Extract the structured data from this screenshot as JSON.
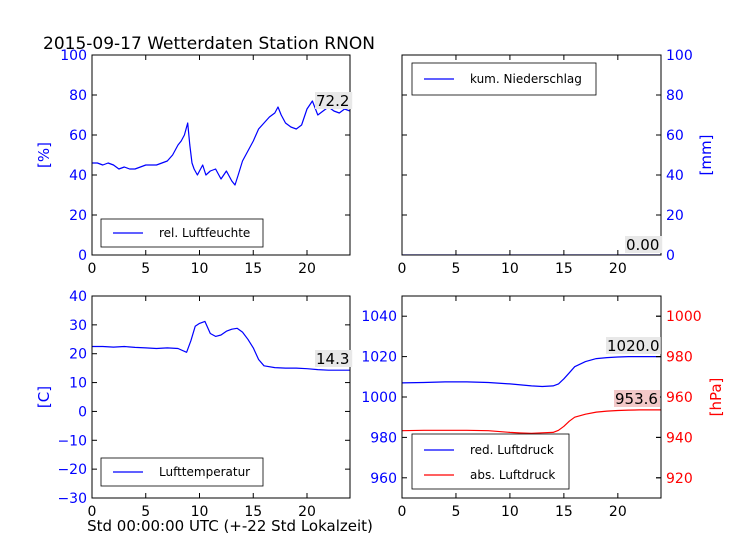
{
  "title": "2015-09-17 Wetterdaten Station RNON",
  "xlabel": "Std 00:00:00 UTC (+-22 Std Lokalzeit)",
  "colors": {
    "blue": "#0000ff",
    "red": "#ff0000",
    "axis": "#000000",
    "label_box": "#e8e8e8",
    "label_box_red": "#f3c9c9"
  },
  "chart_data": [
    {
      "type": "line",
      "panel": "top-left",
      "ylabel": "[%]",
      "ylabel_color": "#0000ff",
      "xlim": [
        0,
        24
      ],
      "ylim": [
        0,
        100
      ],
      "xticks": [
        0,
        5,
        10,
        15,
        20
      ],
      "yticks": [
        0,
        20,
        40,
        60,
        80,
        100
      ],
      "ytick_labels": [
        "0",
        "20",
        "40",
        "60",
        "80",
        "100"
      ],
      "legend_position": "lower-left",
      "value_label": "72.2",
      "series": [
        {
          "name": "rel. Luftfeuchte",
          "color": "#0000ff",
          "x": [
            0,
            0.5,
            1,
            1.5,
            2,
            2.5,
            3,
            3.5,
            4,
            4.5,
            5,
            5.5,
            6,
            6.5,
            7,
            7.5,
            8,
            8.3,
            8.6,
            8.9,
            9.1,
            9.3,
            9.5,
            9.8,
            10,
            10.3,
            10.6,
            11,
            11.5,
            12,
            12.5,
            13,
            13.3,
            13.6,
            14,
            14.5,
            15,
            15.5,
            16,
            16.5,
            17,
            17.3,
            17.6,
            18,
            18.5,
            19,
            19.5,
            20,
            20.5,
            21,
            21.5,
            22,
            22.5,
            23,
            23.5,
            24
          ],
          "y": [
            46,
            46,
            45,
            46,
            45,
            43,
            44,
            43,
            43,
            44,
            45,
            45,
            45,
            46,
            47,
            50,
            55,
            57,
            60,
            66,
            55,
            46,
            43,
            40,
            42,
            45,
            40,
            42,
            43,
            38,
            42,
            37,
            35,
            40,
            47,
            52,
            57,
            63,
            66,
            69,
            71,
            74,
            70,
            66,
            64,
            63,
            65,
            73,
            77,
            70,
            72,
            74,
            72,
            71,
            73,
            72
          ]
        }
      ]
    },
    {
      "type": "line",
      "panel": "top-right",
      "ylabel": "[mm]",
      "ylabel_color": "#0000ff",
      "xlim": [
        0,
        24
      ],
      "ylim": [
        0,
        100
      ],
      "xticks": [
        0,
        5,
        10,
        15,
        20
      ],
      "yticks": [
        0,
        20,
        40,
        60,
        80,
        100
      ],
      "ytick_labels": [
        "0",
        "20",
        "40",
        "60",
        "80",
        "100"
      ],
      "legend_position": "upper-left",
      "value_label": "0.00",
      "series": [
        {
          "name": "kum. Niederschlag",
          "color": "#0000ff",
          "x": [
            0,
            24
          ],
          "y": [
            0,
            0
          ]
        }
      ]
    },
    {
      "type": "line",
      "panel": "bottom-left",
      "ylabel": "[C]",
      "ylabel_color": "#0000ff",
      "xlim": [
        0,
        24
      ],
      "ylim": [
        -30,
        40
      ],
      "xticks": [
        0,
        5,
        10,
        15,
        20
      ],
      "yticks": [
        -30,
        -20,
        -10,
        0,
        10,
        20,
        30,
        40
      ],
      "ytick_labels": [
        "−30",
        "−20",
        "−10",
        "0",
        "10",
        "20",
        "30",
        "40"
      ],
      "legend_position": "lower-left",
      "value_label": "14.3",
      "series": [
        {
          "name": "Lufttemperatur",
          "color": "#0000ff",
          "x": [
            0,
            1,
            2,
            3,
            4,
            5,
            6,
            7,
            8,
            8.8,
            9.2,
            9.6,
            10,
            10.5,
            11,
            11.5,
            12,
            12.5,
            13,
            13.5,
            14,
            14.5,
            15,
            15.5,
            16,
            17,
            18,
            19,
            20,
            21,
            22,
            23,
            24
          ],
          "y": [
            22.5,
            22.5,
            22.3,
            22.5,
            22.2,
            22.0,
            21.8,
            22.0,
            21.8,
            20.5,
            24.5,
            29.5,
            30.5,
            31.2,
            27.0,
            26.0,
            26.5,
            27.8,
            28.5,
            28.8,
            27.5,
            25.0,
            22.0,
            18.0,
            15.8,
            15.2,
            15.0,
            15.0,
            14.8,
            14.5,
            14.3,
            14.3,
            14.3
          ]
        }
      ]
    },
    {
      "type": "line",
      "panel": "bottom-right",
      "xlim": [
        0,
        24
      ],
      "xticks": [
        0,
        5,
        10,
        15,
        20
      ],
      "ylim": [
        950,
        1050
      ],
      "yticks": [
        960,
        980,
        1000,
        1020,
        1040
      ],
      "ytick_labels": [
        "960",
        "980",
        "1000",
        "1020",
        "1040"
      ],
      "ylim_right": [
        910,
        1010
      ],
      "yticks_right": [
        920,
        940,
        960,
        980,
        1000
      ],
      "ytick_labels_right": [
        "920",
        "940",
        "960",
        "980",
        "1000"
      ],
      "ylabel_right": "[hPa]",
      "ylabel_right_color": "#ff0000",
      "legend_position": "lower-left",
      "value_labels": [
        "1020.0",
        "953.6"
      ],
      "series": [
        {
          "name": "red. Luftdruck",
          "color": "#0000ff",
          "axis": "left",
          "x": [
            0,
            2,
            4,
            6,
            8,
            10,
            11,
            12,
            13,
            14,
            14.5,
            15,
            15.5,
            16,
            17,
            18,
            19,
            20,
            21,
            22,
            23,
            24
          ],
          "y": [
            1007.0,
            1007.2,
            1007.5,
            1007.5,
            1007.2,
            1006.5,
            1006.0,
            1005.5,
            1005.2,
            1005.5,
            1006.5,
            1009.0,
            1012.0,
            1015.0,
            1017.5,
            1019.0,
            1019.5,
            1019.8,
            1020.0,
            1020.0,
            1020.0,
            1020.0
          ]
        },
        {
          "name": "abs. Luftdruck",
          "color": "#ff0000",
          "axis": "right",
          "x": [
            0,
            2,
            4,
            6,
            8,
            10,
            11,
            12,
            13,
            14,
            14.5,
            15,
            15.5,
            16,
            17,
            18,
            19,
            20,
            21,
            22,
            23,
            24
          ],
          "y": [
            943.3,
            943.5,
            943.5,
            943.5,
            943.3,
            942.5,
            942.2,
            942.0,
            942.3,
            942.5,
            943.5,
            945.5,
            948.0,
            950.0,
            951.5,
            952.5,
            953.0,
            953.3,
            953.5,
            953.6,
            953.6,
            953.6
          ]
        }
      ]
    }
  ]
}
